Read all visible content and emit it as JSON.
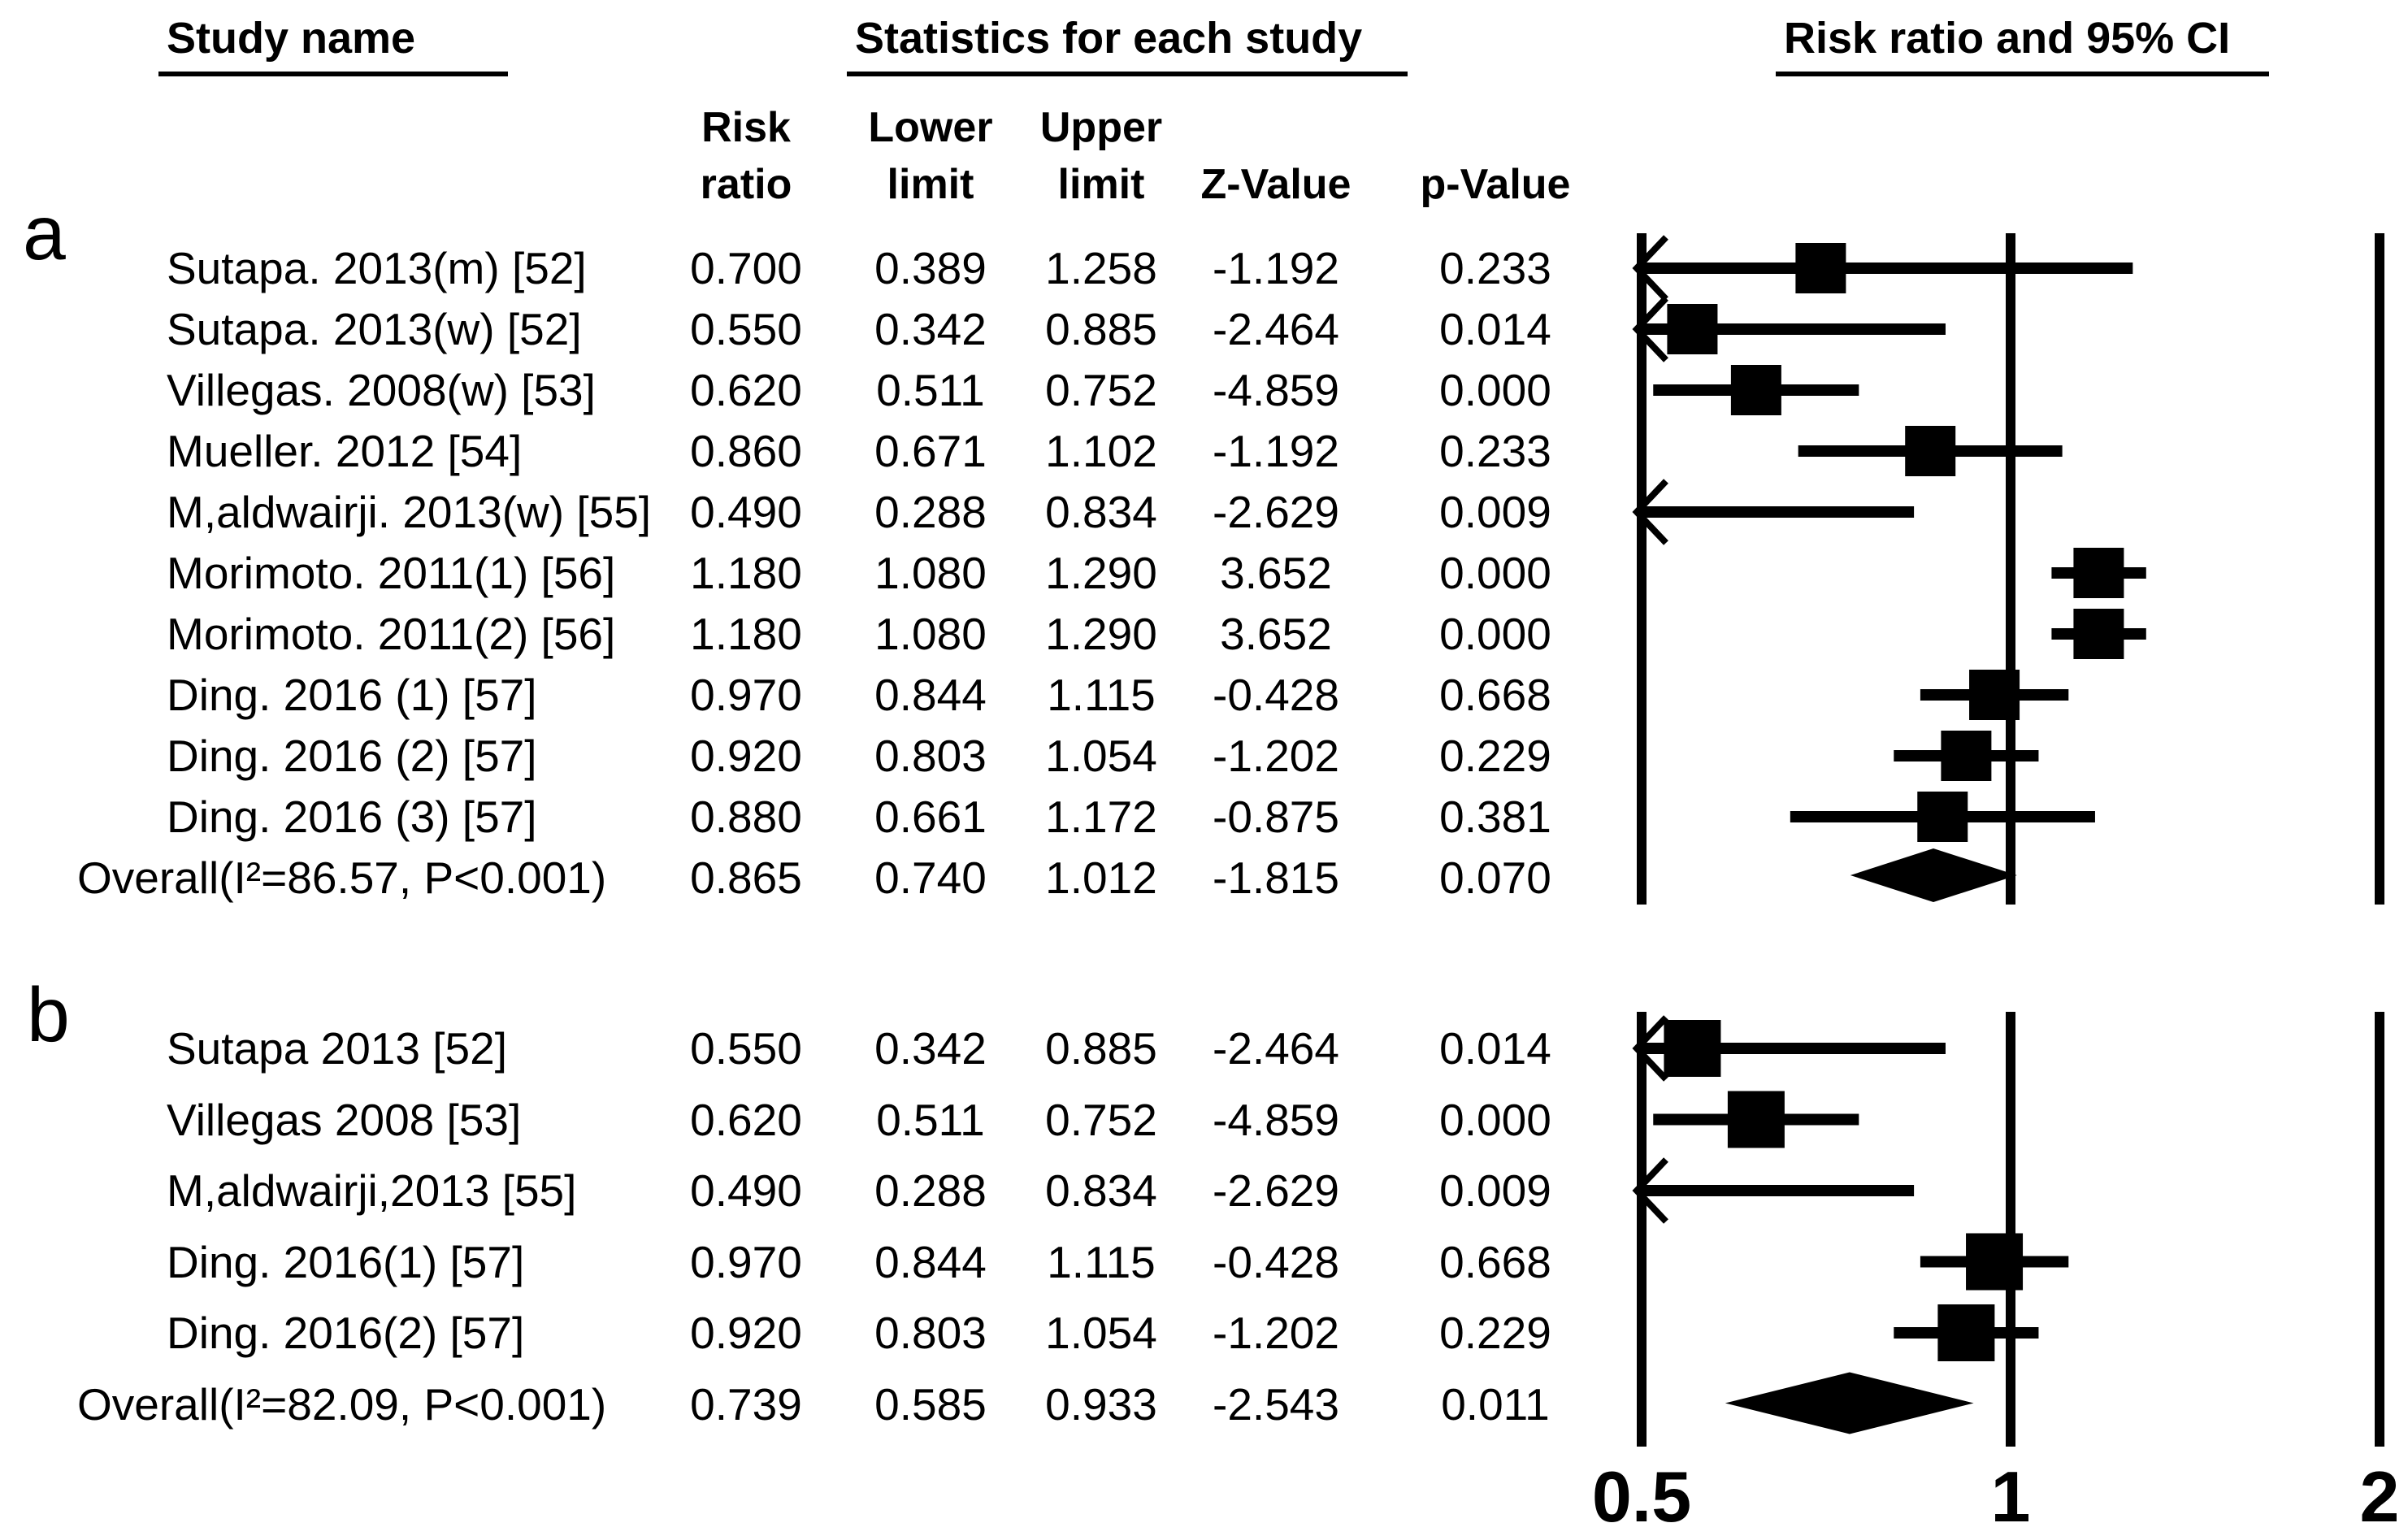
{
  "headers": {
    "study_name": "Study name",
    "statistics": "Statistics for each study",
    "plot": "Risk ratio and 95% CI",
    "columns": [
      {
        "line1": "Risk",
        "line2": "ratio"
      },
      {
        "line1": "Lower",
        "line2": "limit"
      },
      {
        "line1": "Upper",
        "line2": "limit"
      },
      {
        "line1": "",
        "line2": "Z-Value"
      },
      {
        "line1": "",
        "line2": "p-Value"
      }
    ]
  },
  "colors": {
    "foreground": "#000000",
    "background": "#ffffff"
  },
  "chart_data": {
    "type": "forest",
    "effect_measure": "Risk ratio",
    "x_axis": {
      "scale": "log",
      "xlim": [
        0.5,
        2
      ],
      "ticks": [
        0.5,
        1,
        2
      ],
      "tick_labels": [
        "0.5",
        "1",
        "2"
      ],
      "reference_line": 1
    },
    "panels": [
      {
        "label": "a",
        "rows": [
          {
            "name": "Sutapa. 2013(m) [52]",
            "risk_ratio": "0.700",
            "lower_limit": "0.389",
            "upper_limit": "1.258",
            "z_value": "-1.192",
            "p_value": "0.233",
            "overall": false
          },
          {
            "name": "Sutapa. 2013(w) [52]",
            "risk_ratio": "0.550",
            "lower_limit": "0.342",
            "upper_limit": "0.885",
            "z_value": "-2.464",
            "p_value": "0.014",
            "overall": false
          },
          {
            "name": "Villegas. 2008(w) [53]",
            "risk_ratio": "0.620",
            "lower_limit": "0.511",
            "upper_limit": "0.752",
            "z_value": "-4.859",
            "p_value": "0.000",
            "overall": false
          },
          {
            "name": "Mueller. 2012 [54]",
            "risk_ratio": "0.860",
            "lower_limit": "0.671",
            "upper_limit": "1.102",
            "z_value": "-1.192",
            "p_value": "0.233",
            "overall": false
          },
          {
            "name": "M,aldwairji. 2013(w) [55]",
            "risk_ratio": "0.490",
            "lower_limit": "0.288",
            "upper_limit": "0.834",
            "z_value": "-2.629",
            "p_value": "0.009",
            "overall": false
          },
          {
            "name": "Morimoto. 2011(1) [56]",
            "risk_ratio": "1.180",
            "lower_limit": "1.080",
            "upper_limit": "1.290",
            "z_value": "3.652",
            "p_value": "0.000",
            "overall": false
          },
          {
            "name": "Morimoto. 2011(2) [56]",
            "risk_ratio": "1.180",
            "lower_limit": "1.080",
            "upper_limit": "1.290",
            "z_value": "3.652",
            "p_value": "0.000",
            "overall": false
          },
          {
            "name": "Ding. 2016 (1) [57]",
            "risk_ratio": "0.970",
            "lower_limit": "0.844",
            "upper_limit": "1.115",
            "z_value": "-0.428",
            "p_value": "0.668",
            "overall": false
          },
          {
            "name": "Ding. 2016 (2) [57]",
            "risk_ratio": "0.920",
            "lower_limit": "0.803",
            "upper_limit": "1.054",
            "z_value": "-1.202",
            "p_value": "0.229",
            "overall": false
          },
          {
            "name": "Ding. 2016 (3) [57]",
            "risk_ratio": "0.880",
            "lower_limit": "0.661",
            "upper_limit": "1.172",
            "z_value": "-0.875",
            "p_value": "0.381",
            "overall": false
          },
          {
            "name": "Overall(I²=86.57, P<0.001)",
            "risk_ratio": "0.865",
            "lower_limit": "0.740",
            "upper_limit": "1.012",
            "z_value": "-1.815",
            "p_value": "0.070",
            "overall": true
          }
        ]
      },
      {
        "label": "b",
        "rows": [
          {
            "name": "Sutapa 2013 [52]",
            "risk_ratio": "0.550",
            "lower_limit": "0.342",
            "upper_limit": "0.885",
            "z_value": "-2.464",
            "p_value": "0.014",
            "overall": false
          },
          {
            "name": "Villegas 2008 [53]",
            "risk_ratio": "0.620",
            "lower_limit": "0.511",
            "upper_limit": "0.752",
            "z_value": "-4.859",
            "p_value": "0.000",
            "overall": false
          },
          {
            "name": "M,aldwairji,2013 [55]",
            "risk_ratio": "0.490",
            "lower_limit": "0.288",
            "upper_limit": "0.834",
            "z_value": "-2.629",
            "p_value": "0.009",
            "overall": false
          },
          {
            "name": "Ding. 2016(1) [57]",
            "risk_ratio": "0.970",
            "lower_limit": "0.844",
            "upper_limit": "1.115",
            "z_value": "-0.428",
            "p_value": "0.668",
            "overall": false
          },
          {
            "name": "Ding. 2016(2) [57]",
            "risk_ratio": "0.920",
            "lower_limit": "0.803",
            "upper_limit": "1.054",
            "z_value": "-1.202",
            "p_value": "0.229",
            "overall": false
          },
          {
            "name": "Overall(I²=82.09, P<0.001)",
            "risk_ratio": "0.739",
            "lower_limit": "0.585",
            "upper_limit": "0.933",
            "z_value": "-2.543",
            "p_value": "0.011",
            "overall": true
          }
        ]
      }
    ]
  }
}
